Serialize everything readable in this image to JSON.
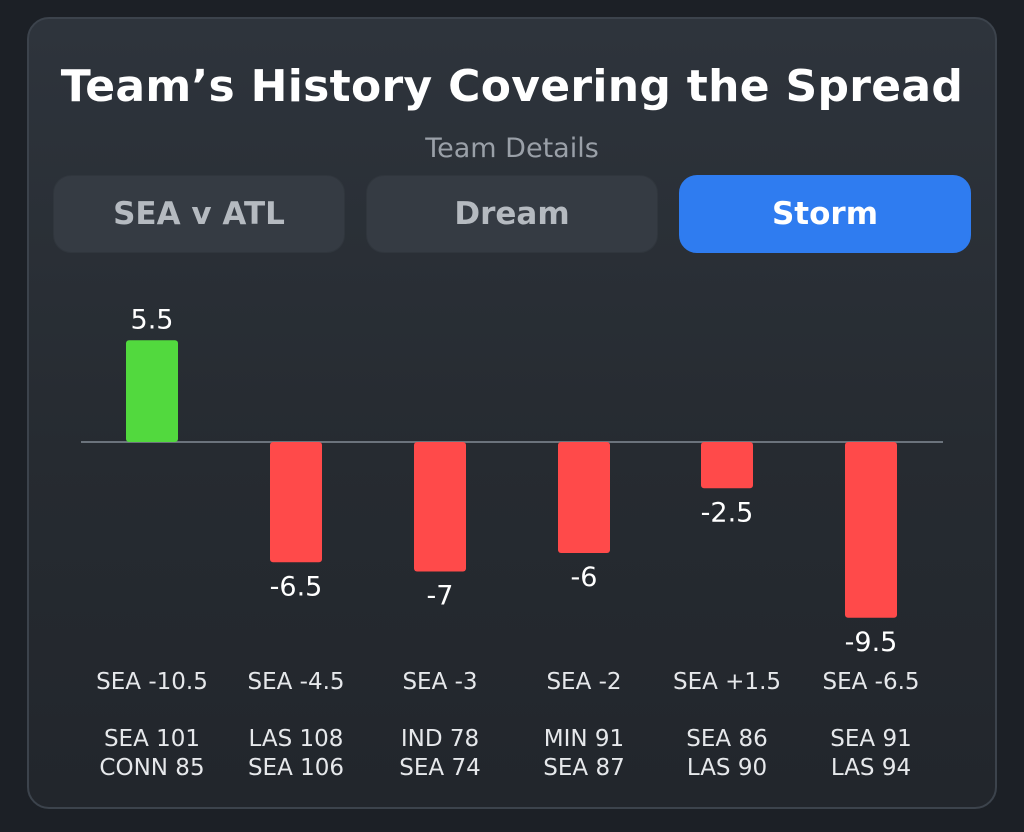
{
  "title": "Team’s History Covering the Spread",
  "subtitle": "Team Details",
  "tabs": [
    {
      "label": "SEA v ATL",
      "active": false
    },
    {
      "label": "Dream",
      "active": false
    },
    {
      "label": "Storm",
      "active": true
    }
  ],
  "colors": {
    "positive": "#52d93e",
    "negative": "#ff4a4a",
    "active_tab": "#2f7cf0",
    "baseline": "#6b737c"
  },
  "chart_data": {
    "type": "bar",
    "categories": [
      "SEA -10.5",
      "SEA -4.5",
      "SEA -3",
      "SEA -2",
      "SEA +1.5",
      "SEA -6.5"
    ],
    "values": [
      5.5,
      -6.5,
      -7,
      -6,
      -2.5,
      -9.5
    ],
    "value_labels": [
      "5.5",
      "-6.5",
      "-7",
      "-6",
      "-2.5",
      "-9.5"
    ],
    "scores": [
      [
        "SEA 101",
        "CONN 85"
      ],
      [
        "LAS 108",
        "SEA 106"
      ],
      [
        "IND 78",
        "SEA 74"
      ],
      [
        "MIN 91",
        "SEA 87"
      ],
      [
        "SEA 86",
        "LAS 90"
      ],
      [
        "SEA 91",
        "LAS 94"
      ]
    ],
    "ylim": [
      -10,
      6
    ],
    "grid": false,
    "legend": "none"
  }
}
